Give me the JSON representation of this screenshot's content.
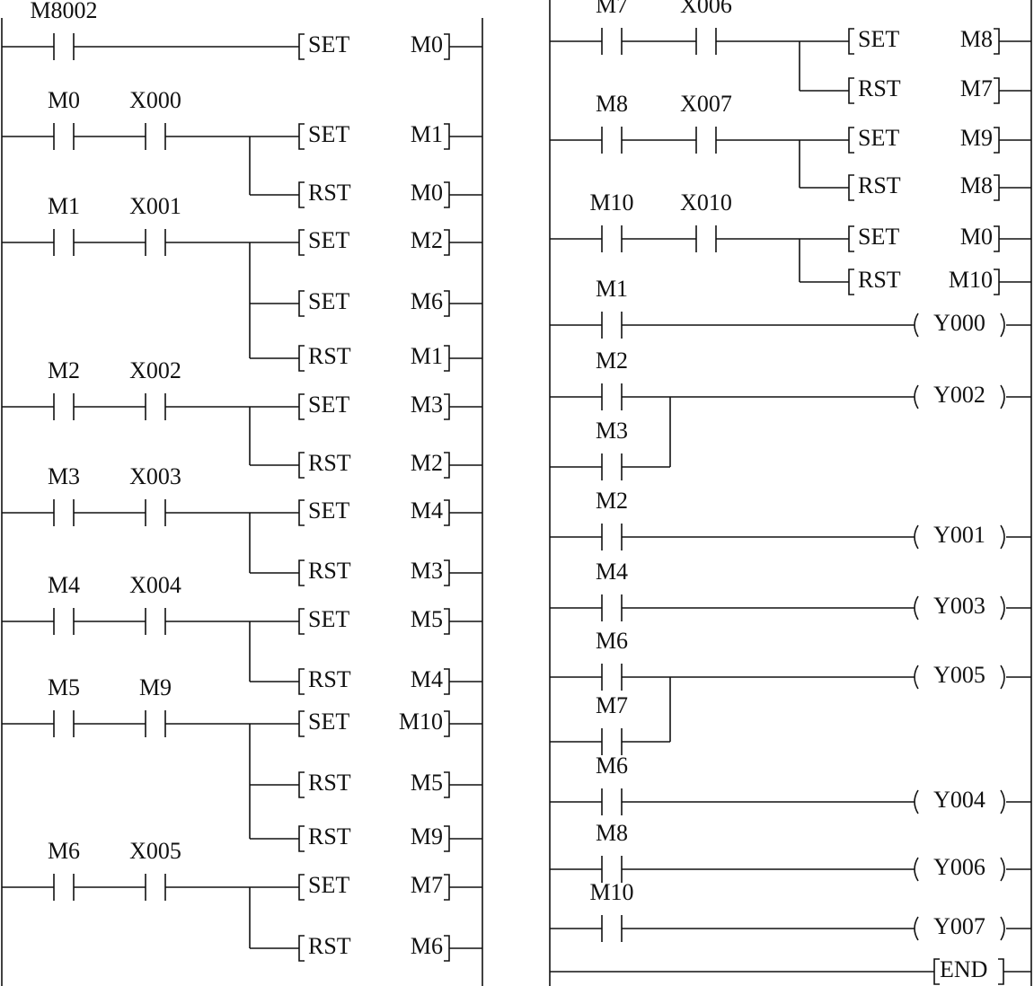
{
  "left": {
    "rungs": [
      {
        "branches": [
          [
            "M8002"
          ]
        ],
        "outputs": [
          {
            "instruction": "SET",
            "operand": "M0"
          }
        ]
      },
      {
        "branches": [
          [
            "M0",
            "X000"
          ]
        ],
        "outputs": [
          {
            "instruction": "SET",
            "operand": "M1"
          },
          {
            "instruction": "RST",
            "operand": "M0"
          }
        ]
      },
      {
        "branches": [
          [
            "M1",
            "X001"
          ]
        ],
        "outputs": [
          {
            "instruction": "SET",
            "operand": "M2"
          },
          {
            "instruction": "SET",
            "operand": "M6"
          },
          {
            "instruction": "RST",
            "operand": "M1"
          }
        ]
      },
      {
        "branches": [
          [
            "M2",
            "X002"
          ]
        ],
        "outputs": [
          {
            "instruction": "SET",
            "operand": "M3"
          },
          {
            "instruction": "RST",
            "operand": "M2"
          }
        ]
      },
      {
        "branches": [
          [
            "M3",
            "X003"
          ]
        ],
        "outputs": [
          {
            "instruction": "SET",
            "operand": "M4"
          },
          {
            "instruction": "RST",
            "operand": "M3"
          }
        ]
      },
      {
        "branches": [
          [
            "M4",
            "X004"
          ]
        ],
        "outputs": [
          {
            "instruction": "SET",
            "operand": "M5"
          },
          {
            "instruction": "RST",
            "operand": "M4"
          }
        ]
      },
      {
        "branches": [
          [
            "M5",
            "M9"
          ]
        ],
        "outputs": [
          {
            "instruction": "SET",
            "operand": "M10"
          },
          {
            "instruction": "RST",
            "operand": "M5"
          },
          {
            "instruction": "RST",
            "operand": "M9"
          }
        ]
      },
      {
        "branches": [
          [
            "M6",
            "X005"
          ]
        ],
        "outputs": [
          {
            "instruction": "SET",
            "operand": "M7"
          },
          {
            "instruction": "RST",
            "operand": "M6"
          }
        ]
      }
    ]
  },
  "right": {
    "rungs": [
      {
        "branches": [
          [
            "M7",
            "X006"
          ]
        ],
        "outputs": [
          {
            "instruction": "SET",
            "operand": "M8"
          },
          {
            "instruction": "RST",
            "operand": "M7"
          }
        ]
      },
      {
        "branches": [
          [
            "M8",
            "X007"
          ]
        ],
        "outputs": [
          {
            "instruction": "SET",
            "operand": "M9"
          },
          {
            "instruction": "RST",
            "operand": "M8"
          }
        ]
      },
      {
        "branches": [
          [
            "M10",
            "X010"
          ]
        ],
        "outputs": [
          {
            "instruction": "SET",
            "operand": "M0"
          },
          {
            "instruction": "RST",
            "operand": "M10"
          }
        ]
      },
      {
        "branches": [
          [
            "M1"
          ]
        ],
        "outputs": [
          {
            "coil": "Y000"
          }
        ]
      },
      {
        "branches": [
          [
            "M2"
          ],
          [
            "M3"
          ]
        ],
        "outputs": [
          {
            "coil": "Y002"
          }
        ]
      },
      {
        "branches": [
          [
            "M2"
          ]
        ],
        "outputs": [
          {
            "coil": "Y001"
          }
        ]
      },
      {
        "branches": [
          [
            "M4"
          ]
        ],
        "outputs": [
          {
            "coil": "Y003"
          }
        ]
      },
      {
        "branches": [
          [
            "M6"
          ],
          [
            "M7"
          ]
        ],
        "outputs": [
          {
            "coil": "Y005"
          }
        ]
      },
      {
        "branches": [
          [
            "M6"
          ]
        ],
        "outputs": [
          {
            "coil": "Y004"
          }
        ]
      },
      {
        "branches": [
          [
            "M8"
          ]
        ],
        "outputs": [
          {
            "coil": "Y006"
          }
        ]
      },
      {
        "branches": [
          [
            "M10"
          ]
        ],
        "outputs": [
          {
            "coil": "Y007"
          }
        ]
      },
      {
        "branches": [],
        "outputs": [
          {
            "instruction": "END"
          }
        ]
      }
    ]
  }
}
